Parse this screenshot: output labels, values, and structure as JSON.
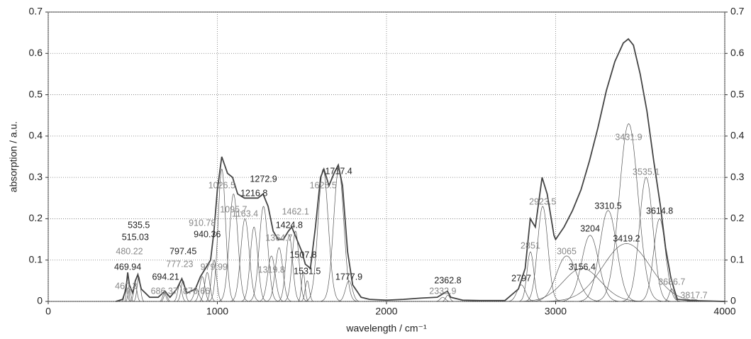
{
  "chart_data": {
    "type": "line",
    "x_label": "wavelength / cm⁻¹",
    "y_label": "absorption / a.u.",
    "xlim": [
      0,
      4000
    ],
    "ylim": [
      0,
      0.7
    ],
    "xticks": [
      0,
      1000,
      2000,
      3000,
      4000
    ],
    "yticks": [
      0,
      0.1,
      0.2,
      0.3,
      0.4,
      0.5,
      0.6,
      0.7
    ],
    "grid": true,
    "series": [
      {
        "color": "#444444",
        "x": [
          400,
          440,
          460,
          470,
          480,
          500,
          515,
          530,
          550,
          600,
          650,
          690,
          720,
          760,
          790,
          820,
          870,
          900,
          930,
          960,
          980,
          1000,
          1026,
          1060,
          1090,
          1120,
          1160,
          1200,
          1240,
          1270,
          1300,
          1330,
          1360,
          1390,
          1420,
          1440,
          1470,
          1500,
          1520,
          1550,
          1580,
          1610,
          1630,
          1660,
          1690,
          1715,
          1740,
          1770,
          1800,
          1850,
          1900,
          2000,
          2100,
          2200,
          2300,
          2340,
          2360,
          2380,
          2450,
          2550,
          2700,
          2780,
          2820,
          2850,
          2880,
          2920,
          2950,
          2990,
          3000,
          3050,
          3100,
          3150,
          3200,
          3250,
          3300,
          3350,
          3400,
          3430,
          3460,
          3500,
          3540,
          3580,
          3620,
          3650,
          3680,
          3700,
          3720,
          3800,
          4000
        ],
        "values": [
          0,
          0.005,
          0.03,
          0.07,
          0.04,
          0.02,
          0.05,
          0.065,
          0.03,
          0.01,
          0.01,
          0.025,
          0.01,
          0.03,
          0.055,
          0.02,
          0.03,
          0.06,
          0.08,
          0.1,
          0.17,
          0.27,
          0.35,
          0.31,
          0.3,
          0.26,
          0.25,
          0.25,
          0.25,
          0.26,
          0.23,
          0.17,
          0.15,
          0.15,
          0.17,
          0.18,
          0.15,
          0.12,
          0.09,
          0.08,
          0.18,
          0.3,
          0.32,
          0.28,
          0.31,
          0.33,
          0.28,
          0.12,
          0.04,
          0.01,
          0.005,
          0.003,
          0.005,
          0.008,
          0.01,
          0.02,
          0.025,
          0.01,
          0.003,
          0.002,
          0.002,
          0.03,
          0.08,
          0.2,
          0.18,
          0.3,
          0.26,
          0.16,
          0.15,
          0.18,
          0.22,
          0.27,
          0.34,
          0.42,
          0.51,
          0.58,
          0.625,
          0.635,
          0.62,
          0.55,
          0.46,
          0.34,
          0.23,
          0.13,
          0.06,
          0.03,
          0.005,
          0.002,
          0
        ]
      }
    ],
    "peaks": [
      {
        "center": 460.3,
        "height": 0.04,
        "width": 8,
        "color": "#888888"
      },
      {
        "center": 469.94,
        "height": 0.07,
        "width": 6,
        "color": "#222222"
      },
      {
        "center": 480.22,
        "height": 0.03,
        "width": 8,
        "color": "#888888"
      },
      {
        "center": 515.03,
        "height": 0.04,
        "width": 10,
        "color": "#222222"
      },
      {
        "center": 535.5,
        "height": 0.06,
        "width": 10,
        "color": "#222222"
      },
      {
        "center": 686.37,
        "height": 0.02,
        "width": 10,
        "color": "#888888"
      },
      {
        "center": 694.21,
        "height": 0.02,
        "width": 10,
        "color": "#222222"
      },
      {
        "center": 777.23,
        "height": 0.04,
        "width": 12,
        "color": "#888888"
      },
      {
        "center": 797.45,
        "height": 0.05,
        "width": 12,
        "color": "#222222"
      },
      {
        "center": 876.66,
        "height": 0.03,
        "width": 15,
        "color": "#888888"
      },
      {
        "center": 910.78,
        "height": 0.06,
        "width": 15,
        "color": "#888888"
      },
      {
        "center": 940.36,
        "height": 0.07,
        "width": 15,
        "color": "#222222"
      },
      {
        "center": 979.99,
        "height": 0.1,
        "width": 15,
        "color": "#888888"
      },
      {
        "center": 1026.5,
        "height": 0.32,
        "width": 22,
        "color": "#888888"
      },
      {
        "center": 1095.7,
        "height": 0.26,
        "width": 25,
        "color": "#888888"
      },
      {
        "center": 1163.4,
        "height": 0.2,
        "width": 25,
        "color": "#888888"
      },
      {
        "center": 1216.8,
        "height": 0.18,
        "width": 22,
        "color": "#222222"
      },
      {
        "center": 1272.9,
        "height": 0.23,
        "width": 25,
        "color": "#222222"
      },
      {
        "center": 1319.8,
        "height": 0.11,
        "width": 22,
        "color": "#888888"
      },
      {
        "center": 1364.7,
        "height": 0.13,
        "width": 22,
        "color": "#888888"
      },
      {
        "center": 1424.8,
        "height": 0.16,
        "width": 20,
        "color": "#222222"
      },
      {
        "center": 1462.1,
        "height": 0.17,
        "width": 20,
        "color": "#888888"
      },
      {
        "center": 1507.8,
        "height": 0.07,
        "width": 10,
        "color": "#222222"
      },
      {
        "center": 1531.5,
        "height": 0.05,
        "width": 12,
        "color": "#222222"
      },
      {
        "center": 1625.5,
        "height": 0.32,
        "width": 30,
        "color": "#888888"
      },
      {
        "center": 1717.4,
        "height": 0.32,
        "width": 30,
        "color": "#222222"
      },
      {
        "center": 1777.9,
        "height": 0.05,
        "width": 20,
        "color": "#222222"
      },
      {
        "center": 2332.9,
        "height": 0.01,
        "width": 15,
        "color": "#888888"
      },
      {
        "center": 2362.8,
        "height": 0.015,
        "width": 12,
        "color": "#222222"
      },
      {
        "center": 2797,
        "height": 0.04,
        "width": 25,
        "color": "#222222"
      },
      {
        "center": 2851,
        "height": 0.12,
        "width": 20,
        "color": "#888888"
      },
      {
        "center": 2923.5,
        "height": 0.23,
        "width": 30,
        "color": "#888888"
      },
      {
        "center": 3065,
        "height": 0.11,
        "width": 60,
        "color": "#888888"
      },
      {
        "center": 3156.4,
        "height": 0.08,
        "width": 110,
        "color": "#222222"
      },
      {
        "center": 3204,
        "height": 0.16,
        "width": 50,
        "color": "#222222"
      },
      {
        "center": 3310.5,
        "height": 0.22,
        "width": 50,
        "color": "#222222"
      },
      {
        "center": 3419.2,
        "height": 0.14,
        "width": 140,
        "color": "#222222"
      },
      {
        "center": 3431.9,
        "height": 0.43,
        "width": 55,
        "color": "#888888"
      },
      {
        "center": 3535.1,
        "height": 0.3,
        "width": 40,
        "color": "#888888"
      },
      {
        "center": 3614.8,
        "height": 0.2,
        "width": 35,
        "color": "#222222"
      },
      {
        "center": 3686.7,
        "height": 0.03,
        "width": 15,
        "color": "#888888"
      },
      {
        "center": 3817.7,
        "height": 0.005,
        "width": 20,
        "color": "#888888"
      }
    ]
  }
}
